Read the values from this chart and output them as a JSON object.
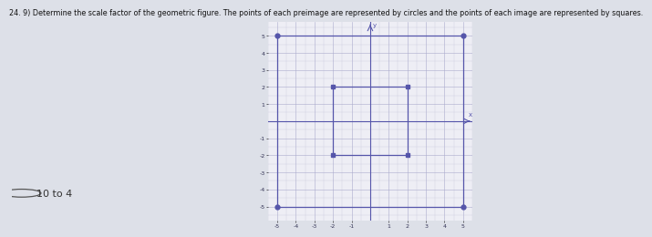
{
  "title": "24. 9) Determine the scale factor of the geometric figure. The points of each preimage are represented by circles and the points of each image are represented by squares.",
  "answer": "10 to 4",
  "xlim": [
    -5.5,
    5.5
  ],
  "ylim": [
    -5.8,
    5.8
  ],
  "xticks": [
    -5,
    -4,
    -3,
    -2,
    -1,
    1,
    2,
    3,
    4,
    5
  ],
  "yticks": [
    -5,
    -4,
    -3,
    -2,
    -1,
    1,
    2,
    3,
    4,
    5
  ],
  "color": "#5555aa",
  "grid_color": "#aaaacc",
  "preimage_rect": [
    [
      -5,
      -5
    ],
    [
      5,
      -5
    ],
    [
      5,
      5
    ],
    [
      -5,
      5
    ]
  ],
  "image_rect": [
    [
      -2,
      -2
    ],
    [
      2,
      -2
    ],
    [
      2,
      2
    ],
    [
      -2,
      2
    ]
  ],
  "fig_bg": "#dde0e8",
  "graph_bg": "#eeeef5"
}
